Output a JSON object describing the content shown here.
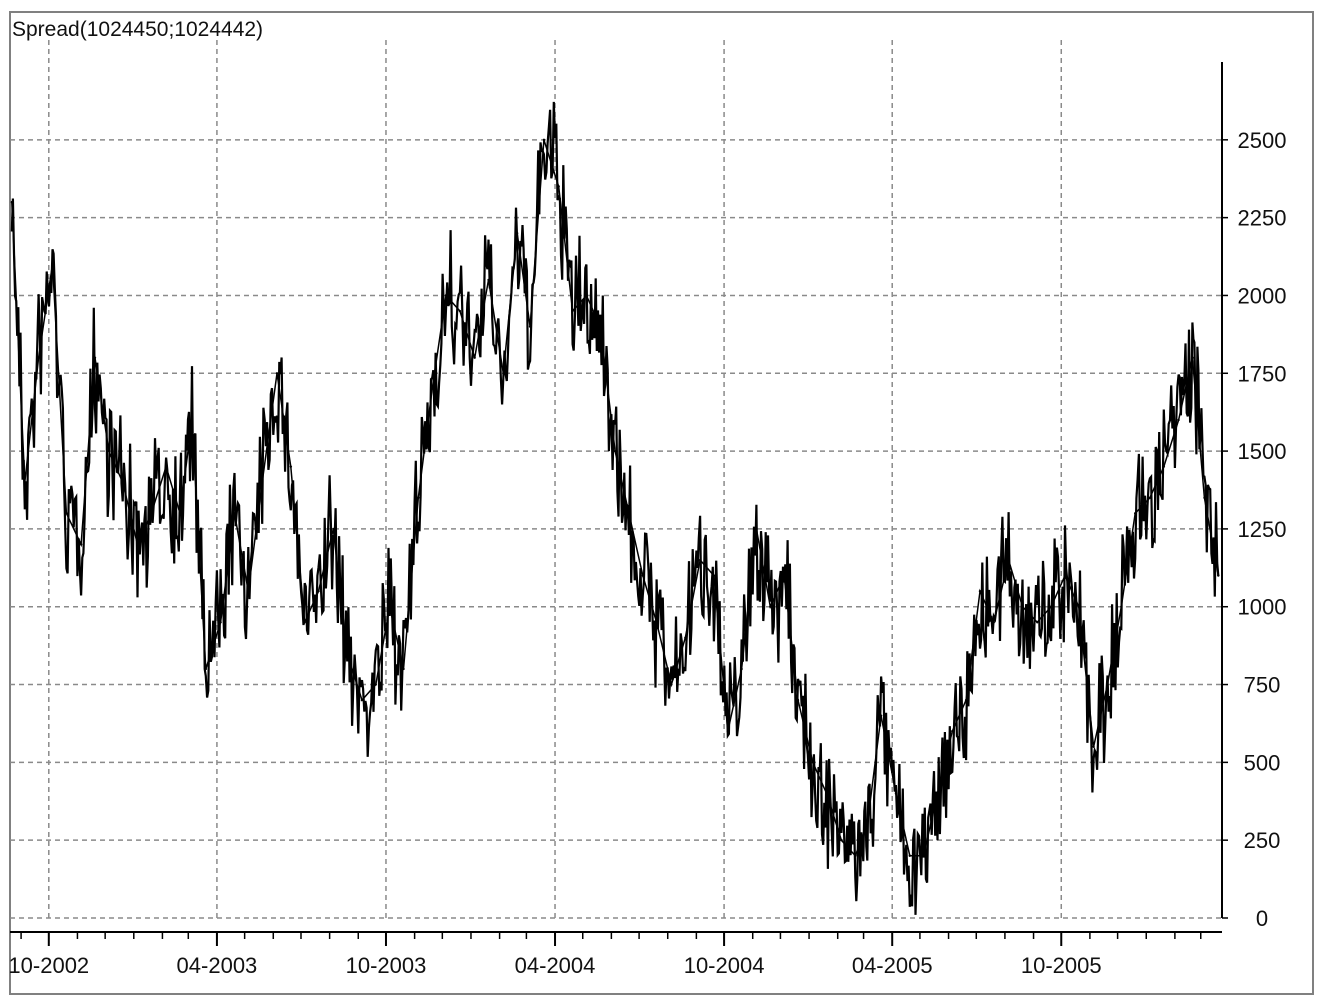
{
  "chart_data": {
    "type": "line",
    "title": "Spread(1024450;1024442)",
    "xlabel": "",
    "ylabel": "",
    "ylim": [
      0,
      2750
    ],
    "yticks": [
      0,
      250,
      500,
      750,
      1000,
      1250,
      1500,
      1750,
      2000,
      2250,
      2500
    ],
    "ytick_labels": [
      "0",
      "250",
      "500",
      "750",
      "1000",
      "1250",
      "1500",
      "1750",
      "2000",
      "2250",
      "2500"
    ],
    "xlim": [
      "2002-08-20",
      "2006-03-24"
    ],
    "xticks": [
      "2002-10-01",
      "2003-04-01",
      "2003-10-01",
      "2004-04-01",
      "2004-10-01",
      "2005-04-01",
      "2005-10-01"
    ],
    "xtick_labels": [
      "10-2002",
      "04-2003",
      "10-2003",
      "04-2004",
      "10-2004",
      "04-2005",
      "10-2005"
    ],
    "grid": true,
    "series": [
      {
        "color": "#000000",
        "x": [
          "2002-08-22",
          "2002-09-05",
          "2002-09-20",
          "2002-10-05",
          "2002-10-20",
          "2002-11-05",
          "2002-11-20",
          "2002-12-05",
          "2002-12-20",
          "2003-01-05",
          "2003-01-20",
          "2003-02-05",
          "2003-02-20",
          "2003-03-05",
          "2003-03-20",
          "2003-04-05",
          "2003-04-20",
          "2003-05-05",
          "2003-05-20",
          "2003-06-05",
          "2003-06-20",
          "2003-07-05",
          "2003-07-20",
          "2003-08-05",
          "2003-08-20",
          "2003-09-05",
          "2003-09-20",
          "2003-10-05",
          "2003-10-20",
          "2003-11-05",
          "2003-11-20",
          "2003-12-05",
          "2003-12-20",
          "2004-01-05",
          "2004-01-20",
          "2004-02-05",
          "2004-02-20",
          "2004-03-05",
          "2004-03-20",
          "2004-04-05",
          "2004-04-20",
          "2004-05-05",
          "2004-05-20",
          "2004-06-05",
          "2004-06-20",
          "2004-07-05",
          "2004-07-20",
          "2004-08-05",
          "2004-08-20",
          "2004-09-05",
          "2004-09-20",
          "2004-10-05",
          "2004-10-20",
          "2004-11-05",
          "2004-11-20",
          "2004-12-05",
          "2004-12-20",
          "2005-01-05",
          "2005-01-20",
          "2005-02-05",
          "2005-02-20",
          "2005-03-05",
          "2005-03-20",
          "2005-04-05",
          "2005-04-20",
          "2005-05-05",
          "2005-05-20",
          "2005-06-05",
          "2005-06-20",
          "2005-07-05",
          "2005-07-20",
          "2005-08-05",
          "2005-08-20",
          "2005-09-05",
          "2005-09-20",
          "2005-10-05",
          "2005-10-20",
          "2005-11-05",
          "2005-11-20",
          "2005-12-05",
          "2005-12-20",
          "2006-01-05",
          "2006-01-20",
          "2006-02-05",
          "2006-02-20",
          "2006-03-05",
          "2006-03-20"
        ],
        "y": [
          2300,
          1400,
          1800,
          2100,
          1300,
          1200,
          1800,
          1500,
          1400,
          1200,
          1300,
          1450,
          1300,
          1600,
          800,
          950,
          1300,
          1050,
          1400,
          1750,
          1450,
          950,
          1050,
          1250,
          850,
          700,
          750,
          1000,
          800,
          1350,
          1700,
          2000,
          1950,
          1800,
          2050,
          1750,
          2200,
          1900,
          2500,
          2350,
          1950,
          2000,
          1900,
          1500,
          1300,
          1100,
          950,
          750,
          900,
          1150,
          1100,
          600,
          800,
          1250,
          1000,
          1100,
          700,
          500,
          400,
          250,
          200,
          300,
          650,
          400,
          200,
          200,
          400,
          600,
          700,
          1050,
          950,
          1150,
          1000,
          950,
          1000,
          1100,
          1000,
          550,
          750,
          1000,
          1300,
          1350,
          1450,
          1600,
          1800,
          1350,
          1100
        ]
      }
    ]
  }
}
